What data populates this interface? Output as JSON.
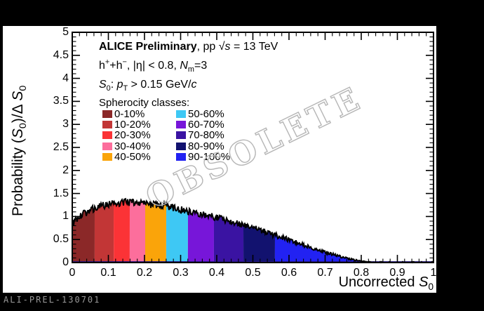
{
  "header": {
    "l1_bold": "ALICE Preliminary",
    "l1_mid": ", pp ",
    "l1_sqrt": "√",
    "l1_s": "s",
    "l1_end": " = 13 TeV",
    "l2_h1": "h",
    "l2_sup1": "+",
    "l2_mid": "+h",
    "l2_sup2": "−",
    "l2_rest": ", |η| < 0.8, ",
    "l2_N": "N",
    "l2_Nsub": "m",
    "l2_end": "=3",
    "l3_S": "S",
    "l3_Ssub": "0",
    "l3_colon": ": ",
    "l3_p": "p",
    "l3_psub": "T",
    "l3_rest": " > 0.15 GeV/",
    "l3_c": "c"
  },
  "watermark": "OBSOLETE",
  "footer_id": "ALI-PREL-130701",
  "chart_data": {
    "type": "area",
    "title": "ALICE Preliminary, pp √s = 13 TeV",
    "subtitle1": "h⁺+h⁻, |η| < 0.8, Nm=3",
    "subtitle2": "S0: pT > 0.15 GeV/c",
    "legend_title": "Spherocity classes:",
    "legend_position": "upper-left, two columns",
    "xlabel_pre": "Uncorrected ",
    "xlabel_S": "S",
    "xlabel_sub": "0",
    "ylabel_pre": "Probability (",
    "ylabel_S1": "S",
    "ylabel_S1sub": "0",
    "ylabel_mid": ")/Δ ",
    "ylabel_S2": "S",
    "ylabel_S2sub": "0",
    "xlim": [
      0,
      1
    ],
    "ylim": [
      0,
      5
    ],
    "x_ticks": [
      "0",
      "0.1",
      "0.2",
      "0.3",
      "0.4",
      "0.5",
      "0.6",
      "0.7",
      "0.8",
      "0.9",
      "1"
    ],
    "y_ticks": [
      "0",
      "0.5",
      "1",
      "1.5",
      "2",
      "2.5",
      "3",
      "3.5",
      "4",
      "4.5",
      "5"
    ],
    "x_minor_step": 0.02,
    "y_minor_step": 0.1,
    "grid": false,
    "curve_color": "#000000",
    "baseline_color": "#26168c",
    "classes": [
      {
        "label": "0-10%",
        "color": "#8b2828",
        "x_start": 0.0,
        "x_end": 0.062
      },
      {
        "label": "10-20%",
        "color": "#c23636",
        "x_start": 0.062,
        "x_end": 0.115
      },
      {
        "label": "20-30%",
        "color": "#fb3336",
        "x_start": 0.115,
        "x_end": 0.159
      },
      {
        "label": "30-40%",
        "color": "#fc6e9c",
        "x_start": 0.159,
        "x_end": 0.202
      },
      {
        "label": "40-50%",
        "color": "#faa40a",
        "x_start": 0.202,
        "x_end": 0.26
      },
      {
        "label": "50-60%",
        "color": "#3ec8f4",
        "x_start": 0.26,
        "x_end": 0.32
      },
      {
        "label": "60-70%",
        "color": "#7716d9",
        "x_start": 0.32,
        "x_end": 0.392
      },
      {
        "label": "70-80%",
        "color": "#3a13a2",
        "x_start": 0.392,
        "x_end": 0.474
      },
      {
        "label": "80-90%",
        "color": "#12126f",
        "x_start": 0.474,
        "x_end": 0.561
      },
      {
        "label": "90-100%",
        "color": "#2222f2",
        "x_start": 0.561,
        "x_end": 1.0
      }
    ],
    "envelope_points": [
      [
        0.0,
        0.84
      ],
      [
        0.02,
        1.0
      ],
      [
        0.05,
        1.14
      ],
      [
        0.08,
        1.23
      ],
      [
        0.11,
        1.285
      ],
      [
        0.15,
        1.31
      ],
      [
        0.19,
        1.295
      ],
      [
        0.23,
        1.26
      ],
      [
        0.27,
        1.21
      ],
      [
        0.31,
        1.14
      ],
      [
        0.35,
        1.07
      ],
      [
        0.39,
        1.0
      ],
      [
        0.43,
        0.92
      ],
      [
        0.47,
        0.83
      ],
      [
        0.51,
        0.73
      ],
      [
        0.55,
        0.625
      ],
      [
        0.59,
        0.52
      ],
      [
        0.63,
        0.41
      ],
      [
        0.67,
        0.3
      ],
      [
        0.71,
        0.2
      ],
      [
        0.75,
        0.115
      ],
      [
        0.78,
        0.055
      ],
      [
        0.81,
        0.02
      ],
      [
        0.835,
        0.005
      ],
      [
        0.86,
        0.0
      ],
      [
        1.0,
        0.0
      ]
    ]
  }
}
